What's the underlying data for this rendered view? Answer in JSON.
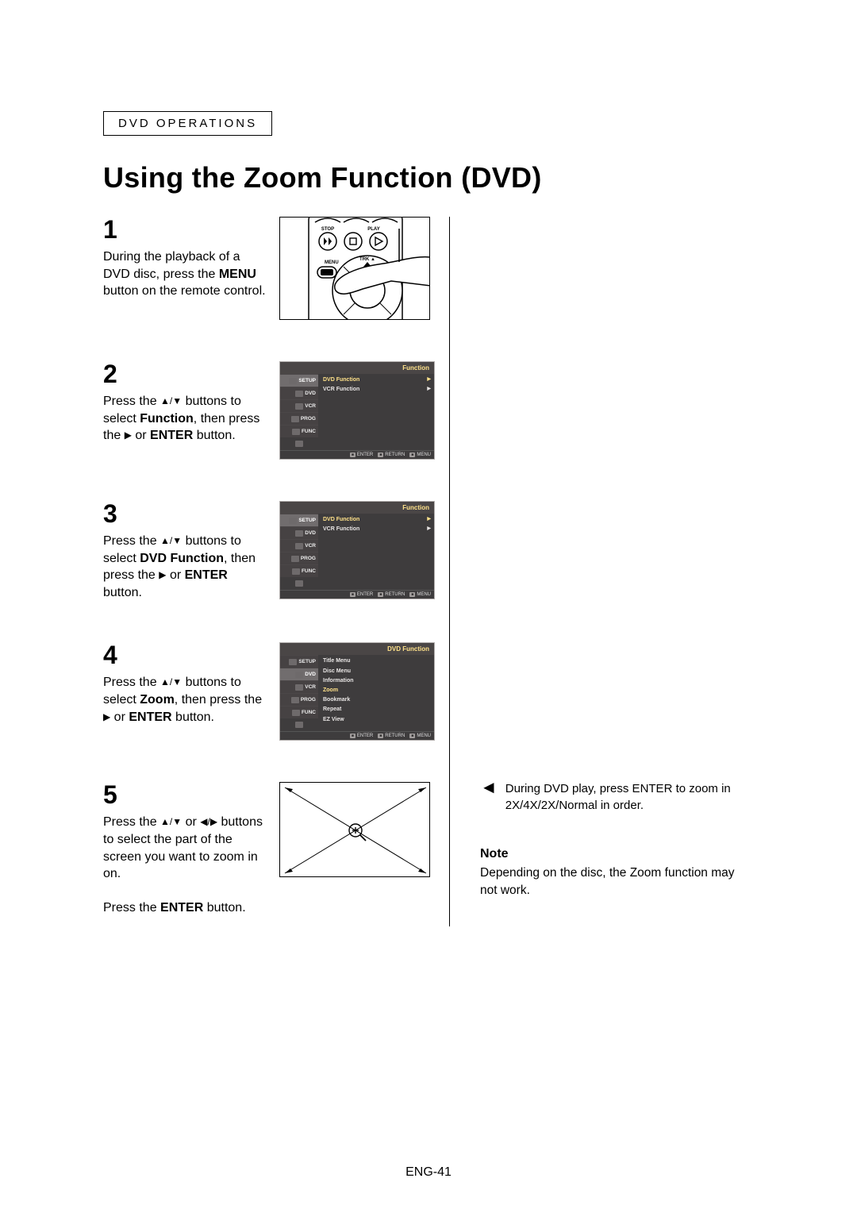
{
  "header": {
    "label": "DVD OPERATIONS"
  },
  "title": "Using the Zoom Function (DVD)",
  "steps": {
    "s1": {
      "num": "1",
      "text_before": "During the playback of a DVD disc, press the ",
      "bold1": "MENU",
      "text_after": " button on the remote control.",
      "remote_labels": {
        "stop": "STOP",
        "play": "PLAY",
        "menu": "MENU",
        "trk": "TRK"
      }
    },
    "s2": {
      "num": "2",
      "l1": "Press the ",
      "l2": " buttons to select ",
      "bold1": "Function",
      "l3": ", then press the ",
      "l4": " or ",
      "bold2": "ENTER",
      "l5": " button."
    },
    "s3": {
      "num": "3",
      "l1": "Press the ",
      "l2": " buttons to select ",
      "bold1": "DVD Function",
      "l3": ", then press the ",
      "l4": " or ",
      "bold2": "ENTER",
      "l5": " button."
    },
    "s4": {
      "num": "4",
      "l1": "Press the ",
      "l2": " buttons to select ",
      "bold1": "Zoom",
      "l3": ", then press the ",
      "l4": " or ",
      "bold2": "ENTER",
      "l5": " button."
    },
    "s5": {
      "num": "5",
      "l1": "Press the ",
      "l2": " or ",
      "l3": " buttons to select the part of the screen you want to zoom in on.",
      "l4": "Press the ",
      "bold1": "ENTER",
      "l5": " button."
    }
  },
  "menu": {
    "sidebar": [
      "SETUP",
      "DVD",
      "VCR",
      "PROG",
      "FUNC"
    ],
    "head_func": "Function",
    "head_dvdfunc": "DVD Function",
    "body_func": [
      "DVD Function",
      "VCR Function"
    ],
    "body_dvd": [
      "Title Menu",
      "Disc Menu",
      "Information",
      "Zoom",
      "Bookmark",
      "Repeat",
      "EZ View"
    ],
    "footer": {
      "enter": "ENTER",
      "return": "RETURN",
      "menu": "MENU"
    }
  },
  "right": {
    "bullet": "During DVD play, press ENTER to zoom in 2X/4X/2X/Normal in order.",
    "note_title": "Note",
    "note_body": "Depending on the disc, the Zoom function may not work."
  },
  "page_num": "ENG-41",
  "colors": {
    "menu_bg": "#3e3c3d",
    "menu_accent": "#ffe28a",
    "menu_border": "#b3afae"
  }
}
